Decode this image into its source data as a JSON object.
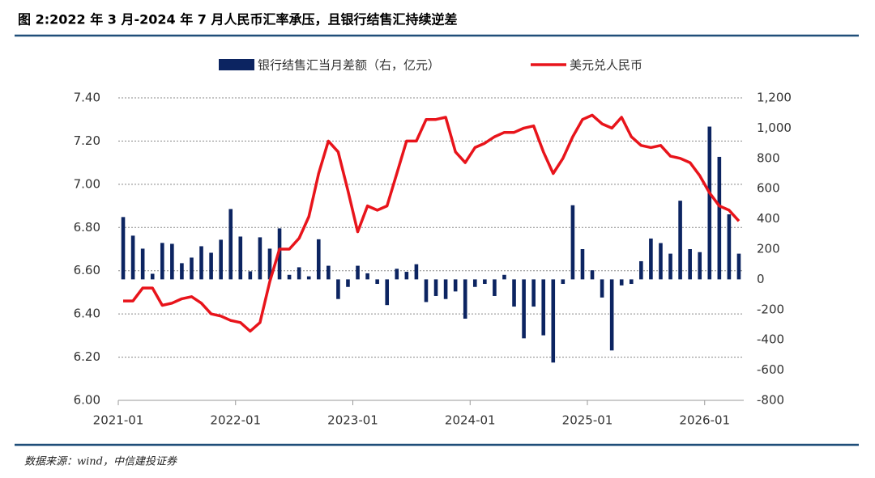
{
  "chart_data": {
    "type": "bar_line",
    "title": "图 2:2022 年 3 月-2024 年 7 月人民币汇率承压，且银行结售汇持续逆差",
    "source": "数据来源：wind，中信建投证券",
    "categories": [
      "2021-01",
      null,
      null,
      null,
      null,
      null,
      null,
      null,
      null,
      null,
      null,
      null,
      "2022-01",
      null,
      null,
      null,
      null,
      null,
      null,
      null,
      null,
      null,
      null,
      null,
      "2023-01",
      null,
      null,
      null,
      null,
      null,
      null,
      null,
      null,
      null,
      null,
      null,
      "2024-01",
      null,
      null,
      null,
      null,
      null,
      null,
      null,
      null,
      null,
      null,
      null,
      "2025-01",
      null,
      null,
      null,
      null,
      null,
      null,
      null,
      null,
      null,
      null,
      null,
      "2026-01",
      null,
      null,
      null
    ],
    "series": [
      {
        "name": "银行结售汇当月差额（右，亿元）",
        "type": "bar",
        "axis": "y2",
        "color": "#0c2461",
        "values": [
          412,
          289,
          203,
          37,
          241,
          235,
          107,
          144,
          219,
          176,
          262,
          465,
          283,
          53,
          278,
          203,
          337,
          30,
          80,
          20,
          265,
          90,
          -130,
          -50,
          90,
          40,
          -30,
          -170,
          70,
          50,
          100,
          -150,
          -110,
          -130,
          -80,
          -260,
          -50,
          -30,
          -110,
          30,
          -180,
          -390,
          -180,
          -370,
          -550,
          -30,
          490,
          200,
          60,
          -120,
          -470,
          -40,
          -30,
          120,
          270,
          240,
          170,
          520,
          200,
          180,
          1010,
          810,
          430,
          170
        ]
      },
      {
        "name": "美元兑人民币",
        "type": "line",
        "color": "#e8141b",
        "values": [
          6.46,
          6.46,
          6.52,
          6.52,
          6.44,
          6.45,
          6.47,
          6.48,
          6.45,
          6.4,
          6.39,
          6.37,
          6.36,
          6.32,
          6.36,
          6.55,
          6.7,
          6.7,
          6.75,
          6.85,
          7.05,
          7.2,
          7.15,
          6.97,
          6.78,
          6.9,
          6.88,
          6.9,
          7.05,
          7.2,
          7.2,
          7.3,
          7.3,
          7.31,
          7.15,
          7.1,
          7.17,
          7.19,
          7.22,
          7.24,
          7.24,
          7.26,
          7.27,
          7.15,
          7.05,
          7.12,
          7.22,
          7.3,
          7.32,
          7.28,
          7.26,
          7.31,
          7.22,
          7.18,
          7.17,
          7.18,
          7.13,
          7.12,
          7.1,
          7.04,
          6.96,
          6.9,
          6.88,
          6.83
        ]
      }
    ],
    "ylim": [
      6.0,
      7.4
    ],
    "yticks": [
      {
        "value": 6.0,
        "label": "6.00"
      },
      {
        "value": 6.2,
        "label": "6.20"
      },
      {
        "value": 6.4,
        "label": "6.40"
      },
      {
        "value": 6.6,
        "label": "6.60"
      },
      {
        "value": 6.8,
        "label": "6.80"
      },
      {
        "value": 7.0,
        "label": "7.00"
      },
      {
        "value": 7.2,
        "label": "7.20"
      },
      {
        "value": 7.4,
        "label": "7.40"
      }
    ],
    "y2lim": [
      -800,
      1200
    ],
    "y2ticks": [
      -800,
      -600,
      -400,
      -200,
      0,
      200,
      400,
      600,
      800,
      {
        "value": 1000,
        "label": "1,000"
      },
      {
        "value": 1200,
        "label": "1,200"
      }
    ],
    "grid": true
  }
}
